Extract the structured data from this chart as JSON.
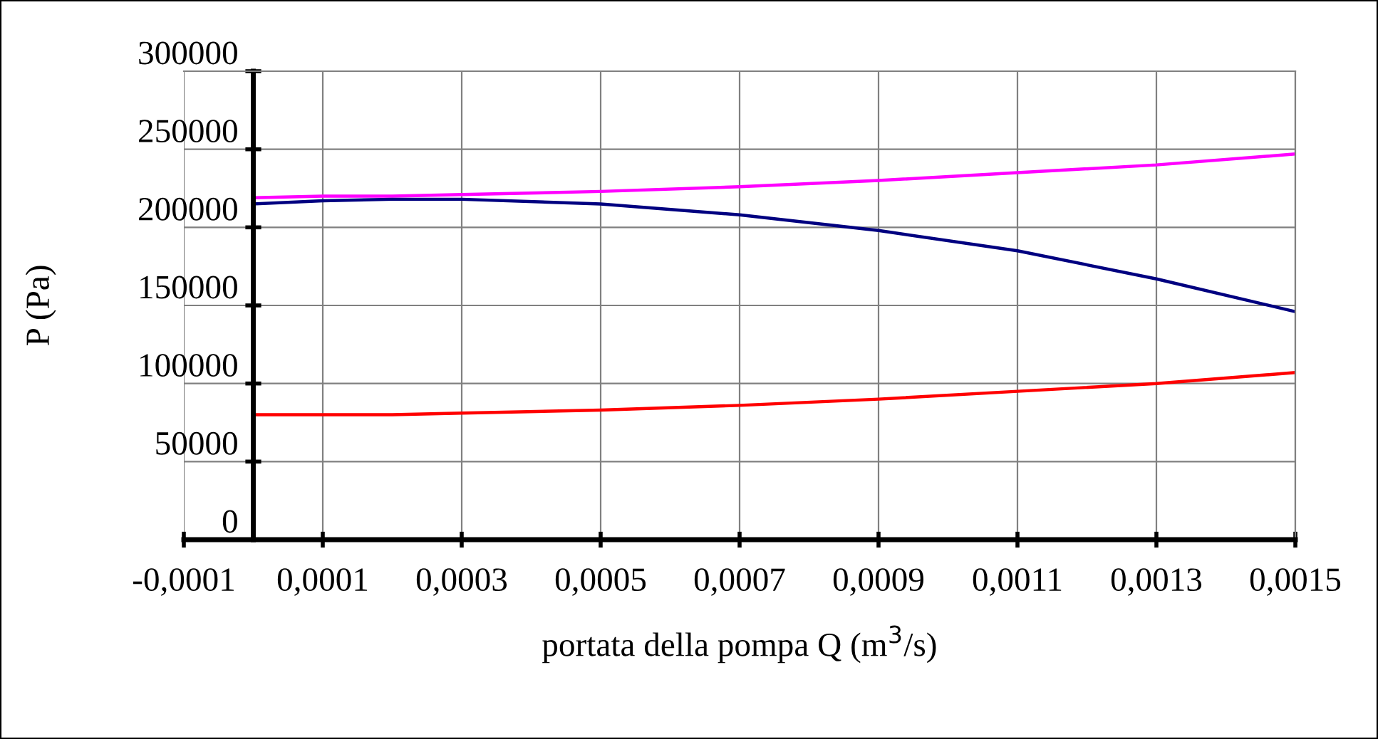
{
  "chart_data": {
    "type": "line",
    "xlabel": "portata della pompa Q (m$^{3}$/s)",
    "ylabel": "P (Pa)",
    "xlim": [
      -0.0001,
      0.0015
    ],
    "xticks": [
      {
        "value": -0.0001,
        "label": "-0,0001"
      },
      {
        "value": 0.0001,
        "label": "0,0001"
      },
      {
        "value": 0.0003,
        "label": "0,0003"
      },
      {
        "value": 0.0005,
        "label": "0,0005"
      },
      {
        "value": 0.0007,
        "label": "0,0007"
      },
      {
        "value": 0.0009,
        "label": "0,0009"
      },
      {
        "value": 0.0011,
        "label": "0,0011"
      },
      {
        "value": 0.0013,
        "label": "0,0013"
      },
      {
        "value": 0.0015,
        "label": "0,0015"
      }
    ],
    "ylim": [
      0,
      300000
    ],
    "yticks": [
      0,
      50000,
      100000,
      150000,
      200000,
      250000,
      300000
    ],
    "x": [
      0,
      0.0001,
      0.0002,
      0.0003,
      0.0005,
      0.0007,
      0.0009,
      0.0011,
      0.0013,
      0.0015
    ],
    "series": [
      {
        "color": "#ff00ff",
        "values": [
          219000,
          220000,
          220000,
          221000,
          223000,
          226000,
          230000,
          235000,
          240000,
          247000
        ]
      },
      {
        "color": "#000080",
        "values": [
          215000,
          217000,
          218000,
          218000,
          215000,
          208000,
          198000,
          185000,
          167000,
          146000
        ]
      },
      {
        "color": "#ff0000",
        "values": [
          80000,
          80000,
          80000,
          81000,
          83000,
          86000,
          90000,
          95000,
          100000,
          107000
        ]
      }
    ],
    "grid": true,
    "legend": false,
    "marker": "none",
    "line_style": "solid"
  }
}
